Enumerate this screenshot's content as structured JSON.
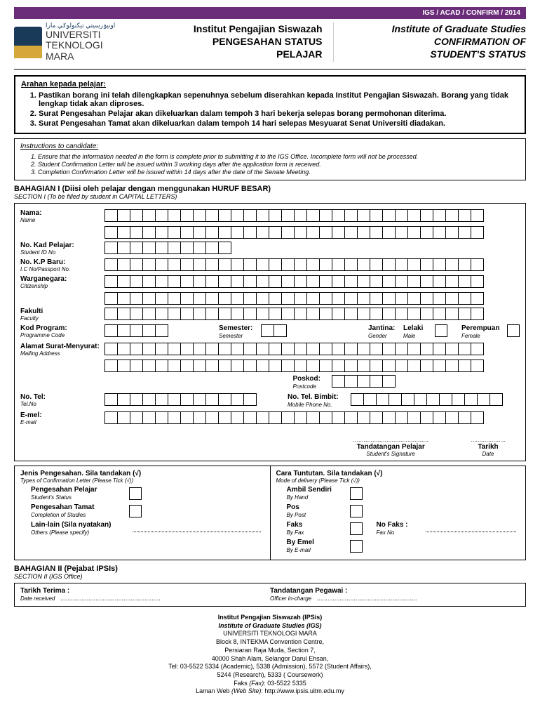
{
  "topBar": "IGS / ACAD / CONFIRM / 2014",
  "logo": {
    "line1": "UNIVERSITI",
    "line2": "TEKNOLOGI",
    "line3": "MARA",
    "arabic": "اونيۏرسيتي تيكنولوݢي مارا"
  },
  "titleMs": {
    "l1": "Institut Pengajian Siswazah",
    "l2": "PENGESAHAN STATUS",
    "l3": "PELAJAR"
  },
  "titleEn": {
    "l1": "Institute of Graduate Studies",
    "l2": "CONFIRMATION OF",
    "l3": "STUDENT'S STATUS"
  },
  "instMs": {
    "title": "Arahan kepada pelajar:",
    "items": [
      "Pastikan borang ini telah dilengkapkan sepenuhnya sebelum diserahkan kepada Institut Pengajian Siswazah. Borang yang tidak lengkap tidak akan diproses.",
      "Surat Pengesahan Pelajar akan dikeluarkan dalam tempoh 3 hari bekerja selepas borang permohonan diterima.",
      "Surat Pengesahan Tamat akan dikeluarkan dalam tempoh 14 hari selepas Mesyuarat Senat Universiti diadakan."
    ]
  },
  "instEn": {
    "title": "Instructions  to candidate:",
    "items": [
      "Ensure that the information needed in the form is complete prior to submitting it to the IGS Office. Incomplete form will not be processed.",
      "Student Confirmation Letter will be issued within 3 working days after the application form is received.",
      "Completion Confirmation Letter will be issued within 14 days after the date of the Senate Meeting."
    ]
  },
  "sec1": {
    "ms": "BAHAGIAN I (Diisi oleh pelajar dengan menggunakan HURUF BESAR)",
    "en": "SECTION I (To be filled by student in CAPITAL LETTERS)"
  },
  "fields": {
    "name": {
      "ms": "Nama:",
      "en": "Name"
    },
    "studentId": {
      "ms": "No. Kad Pelajar:",
      "en": "Student ID No"
    },
    "ic": {
      "ms": "No. K.P Baru:",
      "en": "I.C No/Passport No."
    },
    "citizen": {
      "ms": "Warganegara:",
      "en": "Citizenship"
    },
    "faculty": {
      "ms": "Fakulti",
      "en": "Faculty"
    },
    "prog": {
      "ms": "Kod Program:",
      "en": "Programme Code"
    },
    "sem": {
      "ms": "Semester:",
      "en": "Semester"
    },
    "gender": {
      "ms": "Jantina:",
      "en": "Gender"
    },
    "male": {
      "ms": "Lelaki",
      "en": "Male"
    },
    "female": {
      "ms": "Perempuan",
      "en": "Female"
    },
    "addr": {
      "ms": "Alamat Surat-Menyurat:",
      "en": "Mailing Address"
    },
    "postcode": {
      "ms": "Poskod:",
      "en": "Postcode"
    },
    "tel": {
      "ms": "No. Tel:",
      "en": "Tel.No"
    },
    "mobile": {
      "ms": "No. Tel. Bimbit:",
      "en": "Mobile Phone No."
    },
    "email": {
      "ms": "E-mel:",
      "en": "E-mail"
    }
  },
  "sig": {
    "student": {
      "ms": "Tandatangan Pelajar",
      "en": "Student's Signature"
    },
    "date": {
      "ms": "Tarikh",
      "en": "Date"
    }
  },
  "confirm": {
    "title": {
      "ms": "Jenis Pengesahan. Sila tandakan (√)",
      "en": "Types of Confirmation Letter (Please Tick (√))"
    },
    "status": {
      "ms": "Pengesahan Pelajar",
      "en": "Student's Status"
    },
    "complete": {
      "ms": "Pengesahan Tamat",
      "en": "Completion of Studies"
    },
    "other": {
      "ms": "Lain-lain (Sila nyatakan)",
      "en": "Others (Please specify)"
    }
  },
  "delivery": {
    "title": {
      "ms": "Cara Tuntutan. Sila tandakan (√)",
      "en": "Mode of delivery (Please Tick (√))"
    },
    "hand": {
      "ms": "Ambil Sendiri",
      "en": "By Hand"
    },
    "post": {
      "ms": "Pos",
      "en": "By Post"
    },
    "fax": {
      "ms": "Faks",
      "en": "By Fax"
    },
    "faxno": {
      "ms": "No  Faks  :",
      "en": "Fax No"
    },
    "email": {
      "ms": "By Emel",
      "en": "By E-mail"
    }
  },
  "sec2": {
    "ms": "BAHAGIAN II (Pejabat IPSIs)",
    "en": "SECTION II (IGS Office)"
  },
  "office": {
    "dateRecv": {
      "ms": "Tarikh Terima :",
      "en": "Date received"
    },
    "officer": {
      "ms": "Tandatangan Pegawai :",
      "en": "Officer in-charge"
    }
  },
  "footer": {
    "l1": "Institut Pengajian Siswazah (IPSis)",
    "l2": "Institute of Graduate Studies (IGS)",
    "l3": "UNIVERSITI TEKNOLOGI MARA",
    "l4": "Block 8, INTEKMA Convention Centre,",
    "l5": "Persiaran Raja Muda, Section 7,",
    "l6": "40000 Shah Alam, Selangor Darul Ehsan,",
    "l7": "Tel: 03-5522 5334 (Academic), 5338 (Admission), 5572 (Student Affairs),",
    "l8": "5244 (Research), 5333 ( Coursework)",
    "l9a": "Faks ",
    "l9b": "(Fax)",
    "l9c": ": 03-5522 5335",
    "l10a": "Laman Web ",
    "l10b": "(Web Site)",
    "l10c": ": http://www.ipsis.uitm.edu.my"
  },
  "cellCounts": {
    "name": 30,
    "studentId": 10,
    "ic": 30,
    "citizen": 30,
    "faculty": 30,
    "prog": 5,
    "sem": 2,
    "addr": 30,
    "postcode": 5,
    "tel": 12,
    "mobile": 12,
    "email": 30
  }
}
